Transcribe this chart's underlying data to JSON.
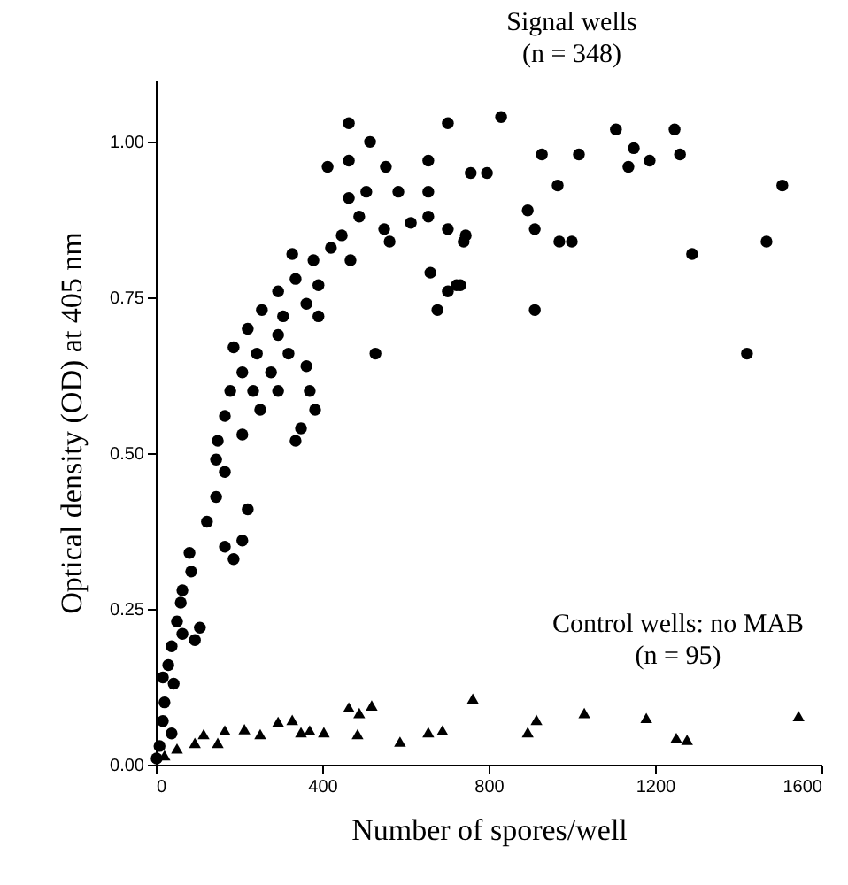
{
  "chart_data": {
    "type": "scatter",
    "xlabel": "Number of spores/well",
    "ylabel": "Optical density (OD) at 405 nm",
    "xlim": [
      0,
      1600
    ],
    "ylim": [
      0,
      1.1
    ],
    "xticks": [
      0,
      400,
      800,
      1200,
      1600
    ],
    "yticks": [
      {
        "value": 0,
        "label": "0.00"
      },
      {
        "value": 0.25,
        "label": "0.25"
      },
      {
        "value": 0.5,
        "label": "0.50"
      },
      {
        "value": 0.75,
        "label": "0.75"
      },
      {
        "value": 1,
        "label": "1.00"
      }
    ],
    "grid": false,
    "annotations": [
      "Signal wells",
      "(n = 348)",
      "Control wells: no MAB",
      "(n = 95)"
    ],
    "series": [
      {
        "color": "#000000",
        "marker": "circle",
        "x": [
          830,
          1106,
          1247,
          928,
          1017,
          1149,
          1136,
          1187,
          1260,
          757,
          796,
          966,
          1506,
          894,
          911,
          970,
          1000,
          1468,
          1289,
          745,
          732,
          911,
          1421,
          464,
          702,
          515,
          413,
          464,
          553,
          655,
          655,
          506,
          583,
          464,
          489,
          655,
          549,
          613,
          562,
          702,
          740,
          447,
          421,
          468,
          660,
          723,
          702,
          677,
          528,
          328,
          379,
          336,
          391,
          294,
          362,
          255,
          306,
          391,
          221,
          294,
          187,
          243,
          319,
          208,
          277,
          362,
          370,
          179,
          234,
          294,
          166,
          251,
          383,
          349,
          149,
          208,
          336,
          145,
          166,
          123,
          145,
          221,
          208,
          166,
          187,
          81,
          85,
          64,
          60,
          51,
          106,
          94,
          38,
          30,
          43,
          21,
          17,
          38,
          9,
          2,
          64,
          17
        ],
        "values": [
          1.04,
          1.02,
          1.02,
          0.98,
          0.98,
          0.99,
          0.96,
          0.97,
          0.98,
          0.95,
          0.95,
          0.93,
          0.93,
          0.89,
          0.86,
          0.84,
          0.84,
          0.84,
          0.82,
          0.85,
          0.77,
          0.73,
          0.66,
          1.03,
          1.03,
          1.0,
          0.96,
          0.97,
          0.96,
          0.97,
          0.92,
          0.92,
          0.92,
          0.91,
          0.88,
          0.88,
          0.86,
          0.87,
          0.84,
          0.86,
          0.84,
          0.85,
          0.83,
          0.81,
          0.79,
          0.77,
          0.76,
          0.73,
          0.66,
          0.82,
          0.81,
          0.78,
          0.77,
          0.76,
          0.74,
          0.73,
          0.72,
          0.72,
          0.7,
          0.69,
          0.67,
          0.66,
          0.66,
          0.63,
          0.63,
          0.64,
          0.6,
          0.6,
          0.6,
          0.6,
          0.56,
          0.57,
          0.57,
          0.54,
          0.52,
          0.53,
          0.52,
          0.49,
          0.47,
          0.39,
          0.43,
          0.41,
          0.36,
          0.35,
          0.33,
          0.34,
          0.31,
          0.28,
          0.26,
          0.23,
          0.22,
          0.2,
          0.19,
          0.16,
          0.13,
          0.1,
          0.07,
          0.05,
          0.03,
          0.01,
          0.21,
          0.14
        ]
      },
      {
        "color": "#000000",
        "marker": "triangle",
        "x": [
          21,
          51,
          94,
          115,
          149,
          166,
          213,
          251,
          294,
          328,
          349,
          370,
          404,
          464,
          489,
          519,
          485,
          587,
          655,
          689,
          762,
          894,
          915,
          1030,
          1179,
          1251,
          1277,
          1545
        ],
        "values": [
          0.015,
          0.026,
          0.035,
          0.049,
          0.035,
          0.055,
          0.057,
          0.049,
          0.069,
          0.072,
          0.052,
          0.055,
          0.052,
          0.092,
          0.083,
          0.095,
          0.049,
          0.037,
          0.052,
          0.055,
          0.106,
          0.052,
          0.072,
          0.083,
          0.075,
          0.043,
          0.04,
          0.078
        ]
      }
    ]
  }
}
